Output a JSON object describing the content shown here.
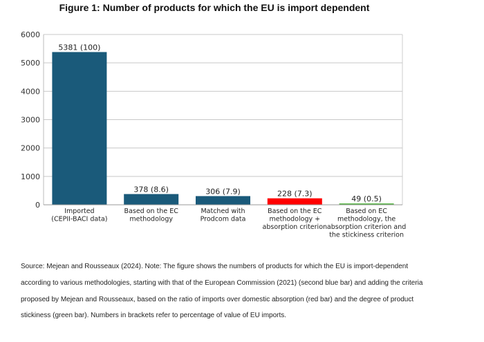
{
  "chart_data": {
    "type": "bar",
    "title": "Figure 1: Number of products for which the EU is import dependent",
    "categories": [
      [
        "Imported",
        "(CEPII-BACI data)"
      ],
      [
        "Based on the EC",
        "methodology"
      ],
      [
        "Matched with",
        "Prodcom data"
      ],
      [
        "Based on the EC",
        "methodology +",
        "absorption criterion"
      ],
      [
        "Based on EC",
        "methodology, the",
        "absorption criterion and",
        "the stickiness criterion"
      ]
    ],
    "values": [
      5381,
      378,
      306,
      228,
      49
    ],
    "data_labels": [
      "5381 (100)",
      "378 (8.6)",
      "306 (7.9)",
      "228 (7.3)",
      "49 (0.5)"
    ],
    "colors": [
      "#1a5a7a",
      "#1a5a7a",
      "#1a5a7a",
      "#ff0000",
      "#5cb84a"
    ],
    "ylim": [
      0,
      6000
    ],
    "yticks": [
      0,
      1000,
      2000,
      3000,
      4000,
      5000,
      6000
    ],
    "grid": true,
    "xlabel": "",
    "ylabel": ""
  },
  "caption": "Source: Mejean and Rousseaux (2024). Note: The figure shows the numbers of products for which the EU is import-dependent according to various methodologies, starting with that of the European Commission (2021) (second blue bar) and adding the criteria proposed by Mejean and Rousseaux, based on the ratio of imports over domestic absorption (red bar) and the degree of product stickiness (green bar). Numbers in brackets refer to percentage of value of EU imports."
}
